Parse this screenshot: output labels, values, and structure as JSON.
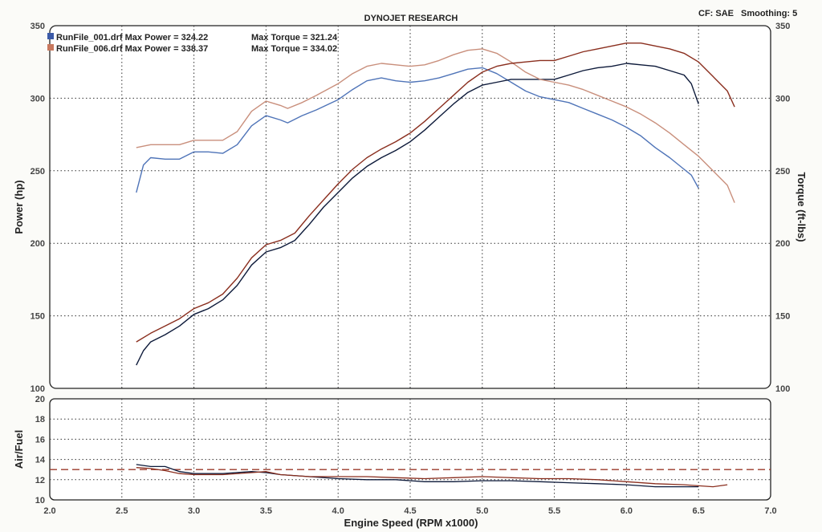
{
  "header": {
    "title": "DYNOJET RESEARCH",
    "cf_label": "CF: SAE",
    "smoothing_label": "Smoothing: 5"
  },
  "legend": [
    {
      "text": "RunFile_001.drf Max Power = 324.22",
      "torque_text": "Max Torque = 321.24",
      "swatch_color": "#3b5aa8"
    },
    {
      "text": "RunFile_006.drf Max Power = 338.37",
      "torque_text": "Max Torque = 334.02",
      "swatch_color": "#c8785e"
    }
  ],
  "colors": {
    "run001_power": "#4f74b8",
    "run001_torque": "#0d1a3a",
    "run006_power": "#c98f7c",
    "run006_torque": "#8a2e1e",
    "target_line": "#9b3a2a"
  },
  "chart_data": [
    {
      "type": "line",
      "title": "DYNOJET RESEARCH",
      "xlabel": "Engine Speed (RPM x1000)",
      "ylabel": "Power (hp)",
      "y2label": "Torque (ft-lbs)",
      "xlim": [
        2.0,
        7.0
      ],
      "ylim": [
        100,
        350
      ],
      "y2lim": [
        100,
        350
      ],
      "x_ticks": [
        "2.0",
        "2.5",
        "3.0",
        "3.5",
        "4.0",
        "4.5",
        "5.0",
        "5.5",
        "6.0",
        "6.5",
        "7.0"
      ],
      "y_ticks": [
        "100",
        "150",
        "200",
        "250",
        "300",
        "350"
      ],
      "y2_ticks": [
        "100",
        "150",
        "200",
        "250",
        "300",
        "350"
      ],
      "grid": true,
      "legend_position": "top-left",
      "series": [
        {
          "name": "RunFile_001.drf",
          "measure": "Power",
          "color": "#4f74b8",
          "points": [
            [
              2.6,
              235
            ],
            [
              2.65,
              254
            ],
            [
              2.7,
              259
            ],
            [
              2.8,
              258
            ],
            [
              2.9,
              258
            ],
            [
              3.0,
              263
            ],
            [
              3.1,
              263
            ],
            [
              3.2,
              262
            ],
            [
              3.3,
              268
            ],
            [
              3.4,
              281
            ],
            [
              3.5,
              288
            ],
            [
              3.6,
              285
            ],
            [
              3.65,
              283
            ],
            [
              3.75,
              288
            ],
            [
              3.85,
              292
            ],
            [
              4.0,
              299
            ],
            [
              4.1,
              306
            ],
            [
              4.2,
              312
            ],
            [
              4.3,
              314
            ],
            [
              4.4,
              312
            ],
            [
              4.5,
              311
            ],
            [
              4.6,
              312
            ],
            [
              4.7,
              314
            ],
            [
              4.8,
              317
            ],
            [
              4.9,
              320
            ],
            [
              5.0,
              321
            ],
            [
              5.1,
              317
            ],
            [
              5.2,
              311
            ],
            [
              5.3,
              305
            ],
            [
              5.4,
              301
            ],
            [
              5.5,
              299
            ],
            [
              5.6,
              297
            ],
            [
              5.7,
              293
            ],
            [
              5.8,
              289
            ],
            [
              5.9,
              285
            ],
            [
              6.0,
              280
            ],
            [
              6.1,
              274
            ],
            [
              6.2,
              266
            ],
            [
              6.3,
              259
            ],
            [
              6.4,
              251
            ],
            [
              6.45,
              247
            ],
            [
              6.5,
              238
            ]
          ]
        },
        {
          "name": "RunFile_001.drf",
          "measure": "Torque",
          "color": "#0d1a3a",
          "points": [
            [
              2.6,
              116
            ],
            [
              2.65,
              126
            ],
            [
              2.7,
              132
            ],
            [
              2.8,
              137
            ],
            [
              2.9,
              143
            ],
            [
              3.0,
              151
            ],
            [
              3.1,
              155
            ],
            [
              3.2,
              161
            ],
            [
              3.3,
              171
            ],
            [
              3.4,
              185
            ],
            [
              3.5,
              194
            ],
            [
              3.6,
              197
            ],
            [
              3.7,
              202
            ],
            [
              3.8,
              213
            ],
            [
              3.9,
              225
            ],
            [
              4.0,
              235
            ],
            [
              4.1,
              245
            ],
            [
              4.2,
              253
            ],
            [
              4.3,
              259
            ],
            [
              4.4,
              264
            ],
            [
              4.5,
              270
            ],
            [
              4.6,
              278
            ],
            [
              4.7,
              287
            ],
            [
              4.8,
              296
            ],
            [
              4.9,
              304
            ],
            [
              5.0,
              309
            ],
            [
              5.1,
              311
            ],
            [
              5.2,
              313
            ],
            [
              5.3,
              313
            ],
            [
              5.4,
              313
            ],
            [
              5.5,
              313
            ],
            [
              5.6,
              316
            ],
            [
              5.7,
              319
            ],
            [
              5.8,
              321
            ],
            [
              5.9,
              322
            ],
            [
              6.0,
              324
            ],
            [
              6.1,
              323
            ],
            [
              6.2,
              322
            ],
            [
              6.3,
              319
            ],
            [
              6.4,
              316
            ],
            [
              6.45,
              310
            ],
            [
              6.5,
              296
            ]
          ]
        },
        {
          "name": "RunFile_006.drf",
          "measure": "Power",
          "color": "#c98f7c",
          "points": [
            [
              2.6,
              266
            ],
            [
              2.7,
              268
            ],
            [
              2.8,
              268
            ],
            [
              2.9,
              268
            ],
            [
              3.0,
              271
            ],
            [
              3.1,
              271
            ],
            [
              3.2,
              271
            ],
            [
              3.3,
              277
            ],
            [
              3.4,
              291
            ],
            [
              3.5,
              298
            ],
            [
              3.6,
              295
            ],
            [
              3.65,
              293
            ],
            [
              3.75,
              297
            ],
            [
              3.85,
              302
            ],
            [
              4.0,
              310
            ],
            [
              4.1,
              317
            ],
            [
              4.2,
              322
            ],
            [
              4.3,
              324
            ],
            [
              4.4,
              323
            ],
            [
              4.5,
              322
            ],
            [
              4.6,
              323
            ],
            [
              4.7,
              326
            ],
            [
              4.8,
              330
            ],
            [
              4.9,
              333
            ],
            [
              5.0,
              334
            ],
            [
              5.1,
              331
            ],
            [
              5.2,
              325
            ],
            [
              5.3,
              318
            ],
            [
              5.4,
              313
            ],
            [
              5.5,
              311
            ],
            [
              5.6,
              309
            ],
            [
              5.7,
              306
            ],
            [
              5.8,
              302
            ],
            [
              5.9,
              298
            ],
            [
              6.0,
              294
            ],
            [
              6.1,
              289
            ],
            [
              6.2,
              283
            ],
            [
              6.3,
              276
            ],
            [
              6.4,
              268
            ],
            [
              6.5,
              260
            ],
            [
              6.6,
              250
            ],
            [
              6.7,
              240
            ],
            [
              6.75,
              228
            ]
          ]
        },
        {
          "name": "RunFile_006.drf",
          "measure": "Torque",
          "color": "#8a2e1e",
          "points": [
            [
              2.6,
              132
            ],
            [
              2.7,
              138
            ],
            [
              2.8,
              143
            ],
            [
              2.9,
              148
            ],
            [
              3.0,
              155
            ],
            [
              3.1,
              159
            ],
            [
              3.2,
              165
            ],
            [
              3.3,
              176
            ],
            [
              3.4,
              190
            ],
            [
              3.5,
              199
            ],
            [
              3.6,
              202
            ],
            [
              3.7,
              207
            ],
            [
              3.8,
              219
            ],
            [
              3.9,
              230
            ],
            [
              4.0,
              241
            ],
            [
              4.1,
              251
            ],
            [
              4.2,
              259
            ],
            [
              4.3,
              265
            ],
            [
              4.4,
              270
            ],
            [
              4.5,
              276
            ],
            [
              4.6,
              284
            ],
            [
              4.7,
              293
            ],
            [
              4.8,
              302
            ],
            [
              4.9,
              311
            ],
            [
              5.0,
              318
            ],
            [
              5.1,
              322
            ],
            [
              5.2,
              324
            ],
            [
              5.3,
              325
            ],
            [
              5.4,
              326
            ],
            [
              5.5,
              326
            ],
            [
              5.6,
              329
            ],
            [
              5.7,
              332
            ],
            [
              5.8,
              334
            ],
            [
              5.9,
              336
            ],
            [
              6.0,
              338
            ],
            [
              6.1,
              338
            ],
            [
              6.2,
              336
            ],
            [
              6.3,
              334
            ],
            [
              6.4,
              331
            ],
            [
              6.5,
              325
            ],
            [
              6.6,
              315
            ],
            [
              6.7,
              305
            ],
            [
              6.75,
              294
            ]
          ]
        }
      ]
    },
    {
      "type": "line",
      "ylabel": "Air/Fuel",
      "xlabel": "Engine Speed (RPM x1000)",
      "xlim": [
        2.0,
        7.0
      ],
      "ylim": [
        10,
        20
      ],
      "x_ticks": [
        "2.0",
        "2.5",
        "3.0",
        "3.5",
        "4.0",
        "4.5",
        "5.0",
        "5.5",
        "6.0",
        "6.5",
        "7.0"
      ],
      "y_ticks": [
        "10",
        "12",
        "14",
        "16",
        "18",
        "20"
      ],
      "grid": true,
      "target_afr": 13.0,
      "series": [
        {
          "name": "RunFile_001.drf",
          "color": "#0d1a3a",
          "points": [
            [
              2.6,
              13.5
            ],
            [
              2.7,
              13.3
            ],
            [
              2.8,
              13.3
            ],
            [
              2.9,
              12.8
            ],
            [
              3.0,
              12.6
            ],
            [
              3.2,
              12.6
            ],
            [
              3.4,
              12.8
            ],
            [
              3.5,
              12.7
            ],
            [
              3.6,
              12.5
            ],
            [
              3.8,
              12.3
            ],
            [
              4.0,
              12.1
            ],
            [
              4.2,
              12.0
            ],
            [
              4.4,
              12.0
            ],
            [
              4.6,
              11.8
            ],
            [
              4.8,
              11.8
            ],
            [
              5.0,
              11.9
            ],
            [
              5.2,
              11.9
            ],
            [
              5.4,
              11.8
            ],
            [
              5.6,
              11.7
            ],
            [
              5.8,
              11.6
            ],
            [
              6.0,
              11.5
            ],
            [
              6.2,
              11.3
            ],
            [
              6.4,
              11.3
            ],
            [
              6.5,
              11.3
            ]
          ]
        },
        {
          "name": "RunFile_006.drf",
          "color": "#8a2e1e",
          "points": [
            [
              2.6,
              13.2
            ],
            [
              2.7,
              13.1
            ],
            [
              2.8,
              12.9
            ],
            [
              2.9,
              12.6
            ],
            [
              3.0,
              12.5
            ],
            [
              3.2,
              12.5
            ],
            [
              3.4,
              12.7
            ],
            [
              3.5,
              12.8
            ],
            [
              3.6,
              12.5
            ],
            [
              3.8,
              12.3
            ],
            [
              4.0,
              12.3
            ],
            [
              4.2,
              12.3
            ],
            [
              4.4,
              12.2
            ],
            [
              4.6,
              12.1
            ],
            [
              4.8,
              12.2
            ],
            [
              5.0,
              12.3
            ],
            [
              5.2,
              12.2
            ],
            [
              5.4,
              12.1
            ],
            [
              5.6,
              12.1
            ],
            [
              5.8,
              12.0
            ],
            [
              6.0,
              11.8
            ],
            [
              6.2,
              11.6
            ],
            [
              6.4,
              11.5
            ],
            [
              6.5,
              11.4
            ],
            [
              6.6,
              11.3
            ],
            [
              6.7,
              11.5
            ]
          ]
        }
      ]
    }
  ]
}
